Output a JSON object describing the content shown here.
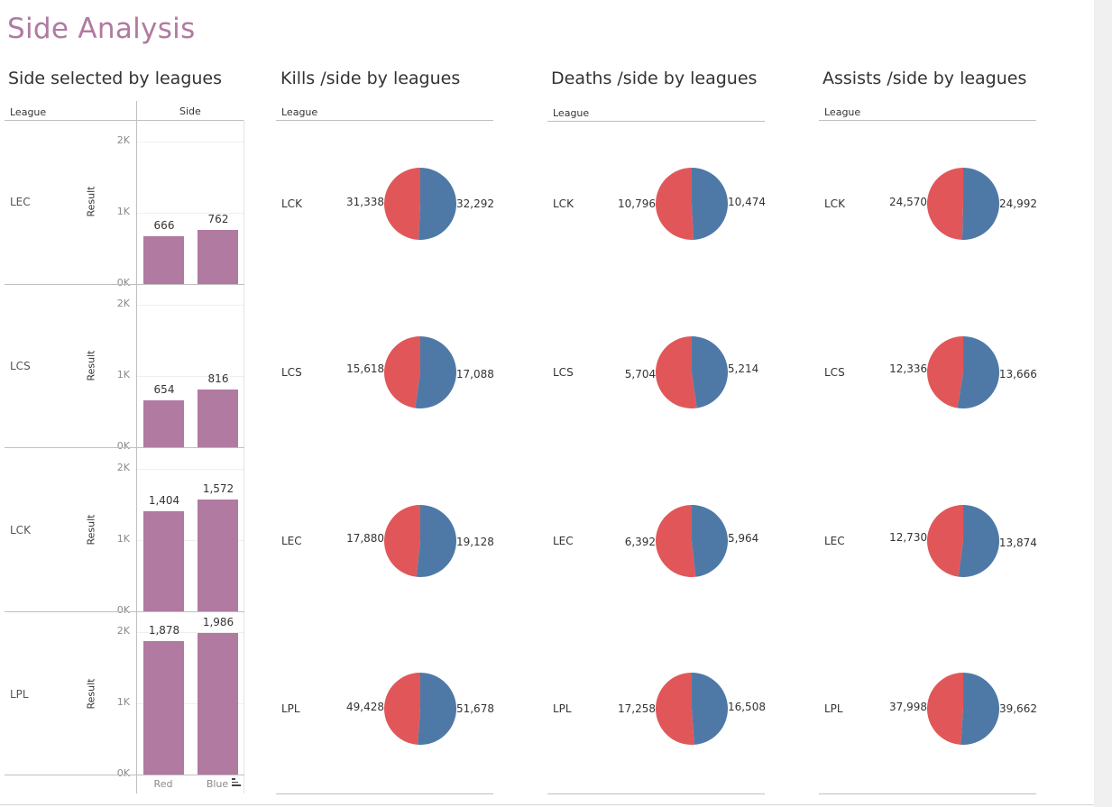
{
  "dashboard": {
    "title": "Side Analysis"
  },
  "sheets": {
    "side": {
      "title": "Side selected by leagues",
      "league_header": "League",
      "side_header": "Side",
      "axis_title": "Result"
    },
    "kills": {
      "title": "Kills /side by leagues",
      "league_header": "League"
    },
    "deaths": {
      "title": "Deaths /side by leagues",
      "league_header": "League"
    },
    "assists": {
      "title": "Assists /side by leagues",
      "league_header": "League"
    }
  },
  "colors": {
    "bar": "#b07aa1",
    "red": "#e15759",
    "blue": "#4e79a7",
    "title": "#b07aa1"
  },
  "chart_data": [
    {
      "type": "bar",
      "title": "Side selected by leagues",
      "ylabel": "Result",
      "ylim": [
        0,
        2000
      ],
      "yticks": [
        "0K",
        "1K",
        "2K"
      ],
      "categories": [
        "Red",
        "Blue"
      ],
      "panels": [
        {
          "league": "LEC",
          "values": [
            666,
            762
          ],
          "labels": [
            "666",
            "762"
          ]
        },
        {
          "league": "LCS",
          "values": [
            654,
            816
          ],
          "labels": [
            "654",
            "816"
          ]
        },
        {
          "league": "LCK",
          "values": [
            1404,
            1572
          ],
          "labels": [
            "1,404",
            "1,572"
          ]
        },
        {
          "league": "LPL",
          "values": [
            1878,
            1986
          ],
          "labels": [
            "1,878",
            "1,986"
          ]
        }
      ]
    },
    {
      "type": "pie",
      "title": "Kills /side by leagues",
      "rows": [
        {
          "league": "LCK",
          "red": 31338,
          "blue": 32292,
          "red_label": "31,338",
          "blue_label": "32,292"
        },
        {
          "league": "LCS",
          "red": 15618,
          "blue": 17088,
          "red_label": "15,618",
          "blue_label": "17,088"
        },
        {
          "league": "LEC",
          "red": 17880,
          "blue": 19128,
          "red_label": "17,880",
          "blue_label": "19,128"
        },
        {
          "league": "LPL",
          "red": 49428,
          "blue": 51678,
          "red_label": "49,428",
          "blue_label": "51,678"
        }
      ]
    },
    {
      "type": "pie",
      "title": "Deaths /side by leagues",
      "rows": [
        {
          "league": "LCK",
          "red": 10796,
          "blue": 10474,
          "red_label": "10,796",
          "blue_label": "10,474"
        },
        {
          "league": "LCS",
          "red": 5704,
          "blue": 5214,
          "red_label": "5,704",
          "blue_label": "5,214"
        },
        {
          "league": "LEC",
          "red": 6392,
          "blue": 5964,
          "red_label": "6,392",
          "blue_label": "5,964"
        },
        {
          "league": "LPL",
          "red": 17258,
          "blue": 16508,
          "red_label": "17,258",
          "blue_label": "16,508"
        }
      ]
    },
    {
      "type": "pie",
      "title": "Assists /side by leagues",
      "rows": [
        {
          "league": "LCK",
          "red": 24570,
          "blue": 24992,
          "red_label": "24,570",
          "blue_label": "24,992"
        },
        {
          "league": "LCS",
          "red": 12336,
          "blue": 13666,
          "red_label": "12,336",
          "blue_label": "13,666"
        },
        {
          "league": "LEC",
          "red": 12730,
          "blue": 13874,
          "red_label": "12,730",
          "blue_label": "13,874"
        },
        {
          "league": "LPL",
          "red": 37998,
          "blue": 39662,
          "red_label": "37,998",
          "blue_label": "39,662"
        }
      ]
    }
  ]
}
